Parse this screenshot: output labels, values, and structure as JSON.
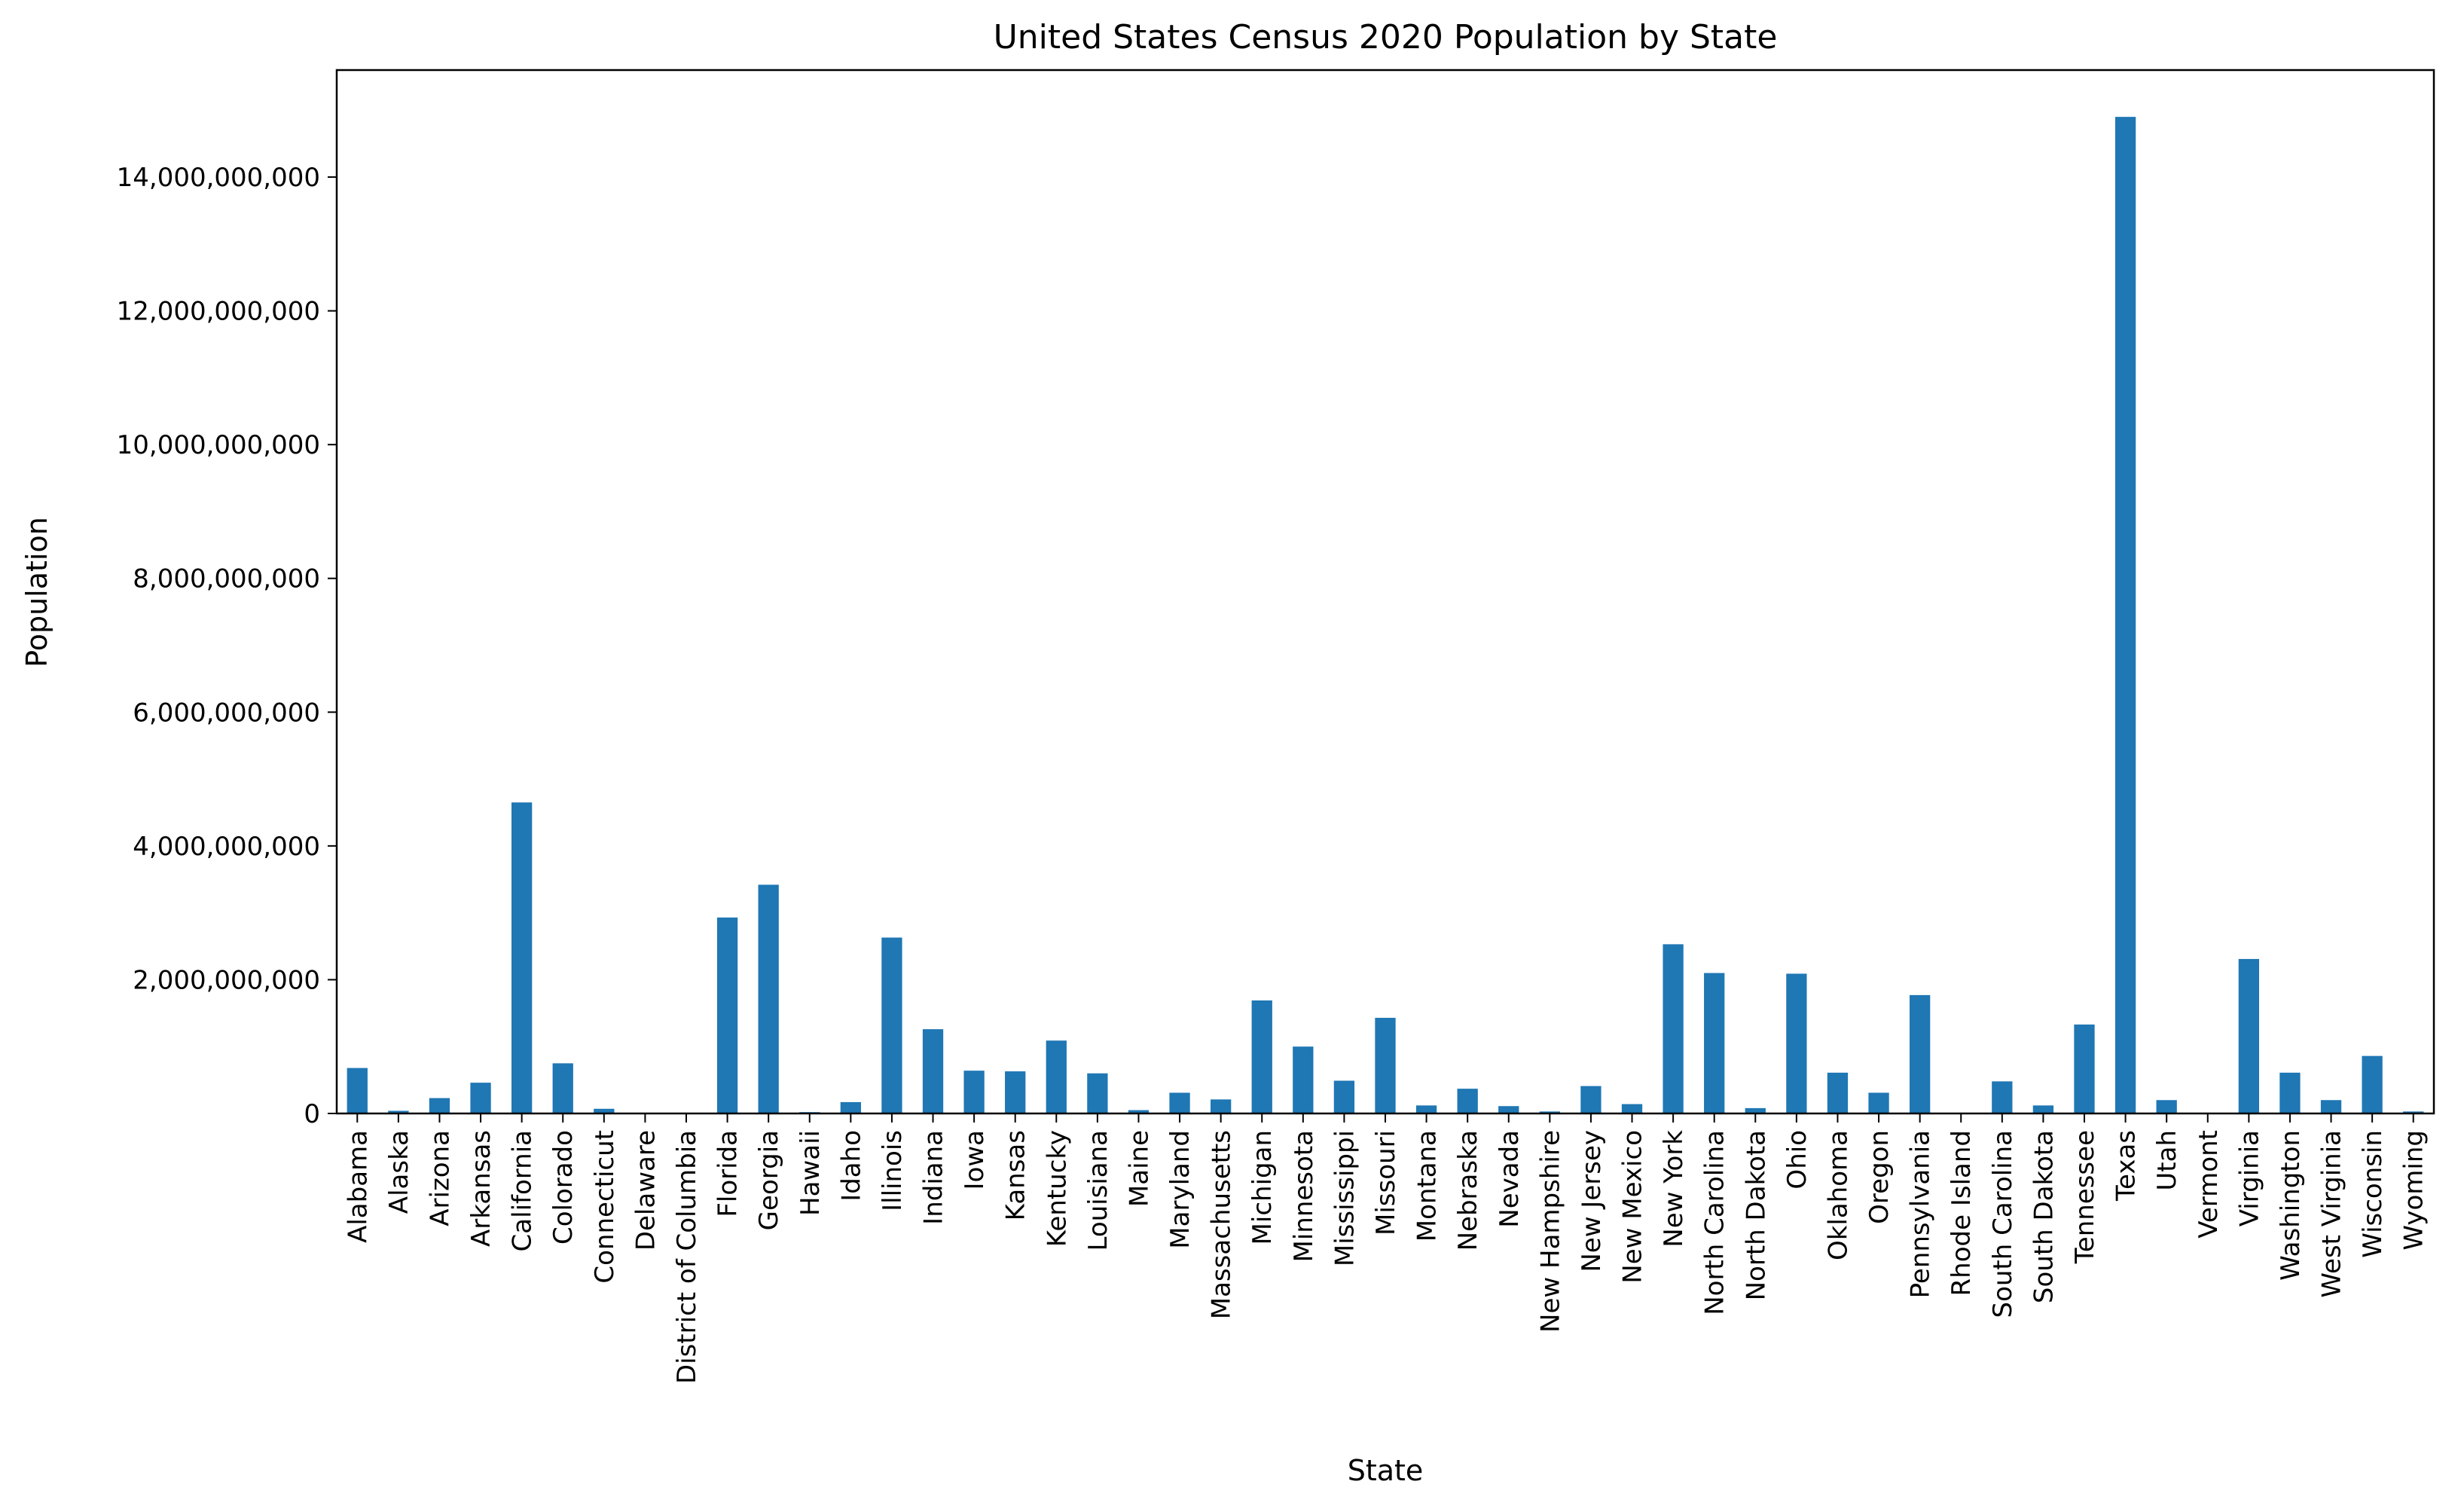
{
  "chart_data": {
    "type": "bar",
    "title": "United States Census 2020 Population by State",
    "xlabel": "State",
    "ylabel": "Population",
    "ylim": [
      0,
      15600000000
    ],
    "yticks": [
      0,
      2000000000,
      4000000000,
      6000000000,
      8000000000,
      10000000000,
      12000000000,
      14000000000
    ],
    "ytick_labels": [
      "0",
      "2,000,000,000",
      "4,000,000,000",
      "6,000,000,000",
      "8,000,000,000",
      "10,000,000,000",
      "12,000,000,000",
      "14,000,000,000"
    ],
    "grid": false,
    "bar_color": "#1f77b4",
    "categories": [
      "Alabama",
      "Alaska",
      "Arizona",
      "Arkansas",
      "California",
      "Colorado",
      "Connecticut",
      "Delaware",
      "District of Columbia",
      "Florida",
      "Georgia",
      "Hawaii",
      "Idaho",
      "Illinois",
      "Indiana",
      "Iowa",
      "Kansas",
      "Kentucky",
      "Louisiana",
      "Maine",
      "Maryland",
      "Massachusetts",
      "Michigan",
      "Minnesota",
      "Mississippi",
      "Missouri",
      "Montana",
      "Nebraska",
      "Nevada",
      "New Hampshire",
      "New Jersey",
      "New Mexico",
      "New York",
      "North Carolina",
      "North Dakota",
      "Ohio",
      "Oklahoma",
      "Oregon",
      "Pennsylvania",
      "Rhode Island",
      "South Carolina",
      "South Dakota",
      "Tennessee",
      "Texas",
      "Utah",
      "Vermont",
      "Virginia",
      "Washington",
      "West Virginia",
      "Wisconsin",
      "Wyoming"
    ],
    "values": [
      680000000,
      40000000,
      230000000,
      460000000,
      4650000000,
      750000000,
      70000000,
      5000000,
      5000000,
      2930000000,
      3420000000,
      20000000,
      170000000,
      2630000000,
      1260000000,
      640000000,
      630000000,
      1090000000,
      600000000,
      50000000,
      310000000,
      210000000,
      1690000000,
      1000000000,
      490000000,
      1430000000,
      120000000,
      370000000,
      110000000,
      30000000,
      410000000,
      140000000,
      2530000000,
      2100000000,
      80000000,
      2090000000,
      610000000,
      310000000,
      1770000000,
      10000000,
      480000000,
      120000000,
      1330000000,
      14900000000,
      200000000,
      10000000,
      2310000000,
      610000000,
      200000000,
      860000000,
      30000000
    ]
  }
}
